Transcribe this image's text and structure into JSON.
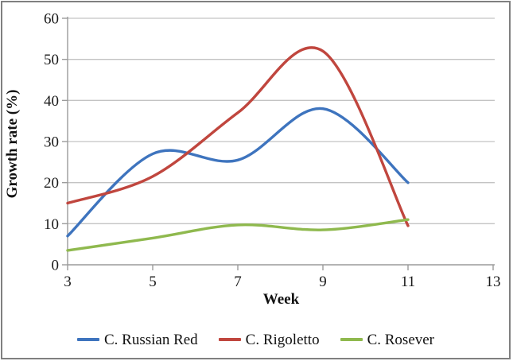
{
  "figure": {
    "background": "#ffffff",
    "border_color": "#808080"
  },
  "chart_data": {
    "type": "line",
    "title": "",
    "xlabel": "Week",
    "ylabel": "Growth rate (%)",
    "x": [
      3,
      5,
      7,
      9,
      11
    ],
    "x_ticks": [
      3,
      5,
      7,
      9,
      11,
      13
    ],
    "y_ticks": [
      0,
      10,
      20,
      30,
      40,
      50,
      60
    ],
    "xlim": [
      3,
      13
    ],
    "ylim": [
      0,
      60
    ],
    "grid": "horizontal",
    "smooth": true,
    "legend_position": "bottom",
    "series": [
      {
        "name": "C. Russian Red",
        "color": "#3E74BE",
        "values": [
          7,
          27,
          25.5,
          38,
          20
        ]
      },
      {
        "name": "C. Rigoletto",
        "color": "#C0463E",
        "values": [
          15,
          21.5,
          37,
          52,
          9.5
        ]
      },
      {
        "name": "C. Rosever",
        "color": "#8FB94E",
        "values": [
          3.5,
          6.5,
          9.7,
          8.5,
          11
        ]
      }
    ],
    "style": {
      "axis_color": "#9b9b9b",
      "gridline_color": "#c3c3c3",
      "text_color": "#1a1a1a",
      "line_width": 3.4
    }
  }
}
